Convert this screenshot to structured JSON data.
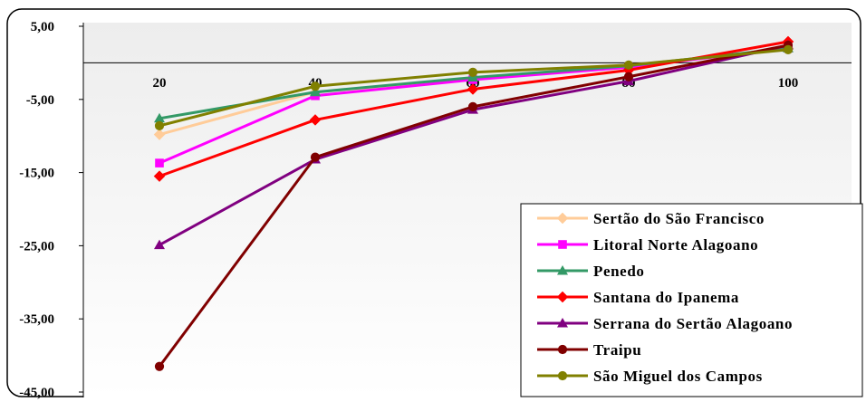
{
  "chart_data": {
    "type": "line",
    "x": [
      20,
      40,
      60,
      80,
      100
    ],
    "x_tick_labels": [
      "20",
      "40",
      "60",
      "80",
      "100"
    ],
    "y_tick_labels": [
      "5,00",
      "-5,00",
      "-15,00",
      "-25,00",
      "-35,00",
      "-45,00"
    ],
    "y_ticks": [
      5,
      -5,
      -15,
      -25,
      -35,
      -45
    ],
    "ylim": [
      -45,
      5
    ],
    "grid": false,
    "legend_position": "bottom-right",
    "series": [
      {
        "name": "Sertão do São Francisco",
        "color": "#FFCC99",
        "marker": "diamond",
        "values": [
          -9.8,
          -4.0,
          -2.2,
          -0.5,
          2.0
        ]
      },
      {
        "name": "Litoral Norte Alagoano",
        "color": "#FF00FF",
        "marker": "square",
        "values": [
          -13.7,
          -4.5,
          -2.3,
          -0.6,
          2.0
        ]
      },
      {
        "name": "Penedo",
        "color": "#339966",
        "marker": "triangle",
        "values": [
          -7.6,
          -4.0,
          -2.0,
          -0.4,
          2.0
        ]
      },
      {
        "name": "Santana do Ipanema",
        "color": "#FF0000",
        "marker": "diamond",
        "values": [
          -15.5,
          -7.8,
          -3.6,
          -1.0,
          2.9
        ]
      },
      {
        "name": "Serrana do Sertão Alagoano",
        "color": "#800080",
        "marker": "triangle",
        "values": [
          -24.9,
          -13.2,
          -6.4,
          -2.5,
          2.4
        ]
      },
      {
        "name": "Traipu",
        "color": "#800000",
        "marker": "circle",
        "values": [
          -41.5,
          -12.9,
          -6.0,
          -1.9,
          2.4
        ]
      },
      {
        "name": "São Miguel dos Campos",
        "color": "#808000",
        "marker": "circle",
        "values": [
          -8.6,
          -3.2,
          -1.3,
          -0.3,
          1.8
        ]
      }
    ]
  }
}
